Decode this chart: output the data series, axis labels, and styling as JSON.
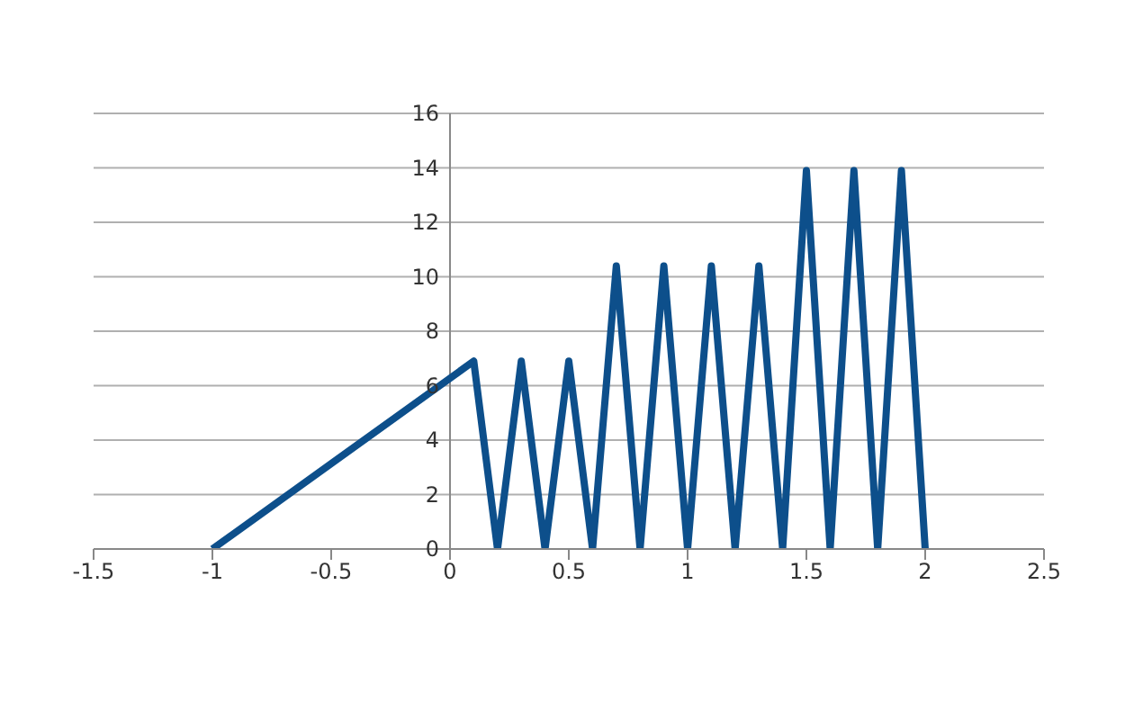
{
  "chart_data": {
    "type": "line",
    "x": [
      -1,
      0.1,
      0.2,
      0.3,
      0.4,
      0.5,
      0.6,
      0.7,
      0.8,
      0.9,
      1.0,
      1.1,
      1.2,
      1.3,
      1.4,
      1.5,
      1.6,
      1.7,
      1.8,
      1.9,
      2.0
    ],
    "series": [
      {
        "color": "#0d4f8b",
        "values": [
          0,
          6.9,
          0,
          6.9,
          0,
          6.9,
          0,
          10.4,
          0,
          10.4,
          0,
          10.4,
          0,
          10.4,
          0,
          13.9,
          0,
          13.9,
          0,
          13.9,
          0
        ]
      }
    ],
    "xlim": [
      -1.5,
      2.5
    ],
    "xticks": [
      -1.5,
      -1,
      -0.5,
      0,
      0.5,
      1,
      1.5,
      2,
      2.5
    ],
    "ylim": [
      0,
      16
    ],
    "yticks": [
      0,
      2,
      4,
      6,
      8,
      10,
      12,
      14,
      16
    ],
    "grid": "y",
    "marker": "none",
    "line_style": "solid"
  }
}
